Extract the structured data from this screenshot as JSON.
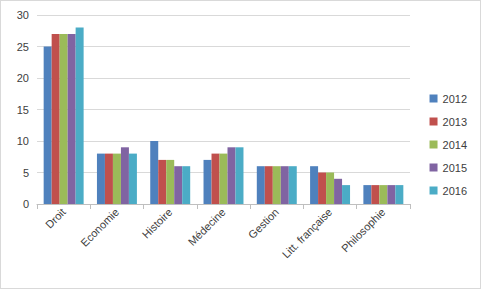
{
  "chart_data": {
    "type": "bar",
    "categories": [
      "Droit",
      "Economie",
      "Histoire",
      "Médecine",
      "Gestion",
      "Litt. française",
      "Philosophie"
    ],
    "series": [
      {
        "name": "2012",
        "color": "#4f81bd",
        "values": [
          25,
          8,
          10,
          7,
          6,
          6,
          3
        ]
      },
      {
        "name": "2013",
        "color": "#c0504d",
        "values": [
          27,
          8,
          7,
          8,
          6,
          5,
          3
        ]
      },
      {
        "name": "2014",
        "color": "#9bbb59",
        "values": [
          27,
          8,
          7,
          8,
          6,
          5,
          3
        ]
      },
      {
        "name": "2015",
        "color": "#8064a2",
        "values": [
          27,
          9,
          6,
          9,
          6,
          4,
          3
        ]
      },
      {
        "name": "2016",
        "color": "#4bacc6",
        "values": [
          28,
          8,
          6,
          9,
          6,
          3,
          3
        ]
      }
    ],
    "ylim": [
      0,
      30
    ],
    "yticks": [
      0,
      5,
      10,
      15,
      20,
      25,
      30
    ],
    "grid": true,
    "legend": "right"
  }
}
